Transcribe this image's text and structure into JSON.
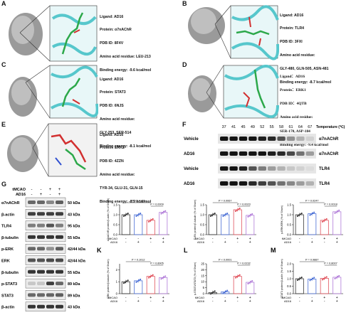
{
  "panels": {
    "A": {
      "letter": "A",
      "ligand": "Ligand: AD16",
      "protein": "Protein: α7nAChR",
      "pdb": "PDB ID: 8F4V",
      "residue_label": "Amino acid residue: LEU-213",
      "residue_values": "",
      "energy": "Binding energy: -9.6 kcal/mol"
    },
    "B": {
      "letter": "B",
      "ligand": "Ligand: AD16",
      "protein": "Protein: TLR4",
      "pdb": "PDB ID: 3FXI",
      "residue_label": "Amino acid residue:",
      "residue_values": "GLY-480, GLN-505, ASN-481",
      "energy": "Binding energy: -8.7 kcal/mol"
    },
    "C": {
      "letter": "C",
      "ligand": "Ligand: AD16",
      "protein": "Protein: STAT3",
      "pdb": "PDB ID: 6NJS",
      "residue_label": "Amino acid residue:",
      "residue_values": "GLY-253, SER-514",
      "energy": "Binding energy: -8.1 kcal/mol"
    },
    "D": {
      "letter": "D",
      "ligand": "Ligand：AD16",
      "protein": "Protein：ERK1",
      "pdb": "PDB ID：4QTB",
      "residue_label": "Amino acid residue:",
      "residue_values": "SER-170, ASP-184",
      "energy": "Binding energy: -9.4 kcal/mol"
    },
    "E": {
      "letter": "E",
      "ligand": "Ligand: AD16",
      "protein": "Protein: ERK2",
      "pdb": "PDB ID: 4ZZN",
      "residue_label": "Amino acid residue:",
      "residue_values": "TYR-34, GLU-31, GLN-15",
      "energy": "Binding energy: -8.9 kcal/mol"
    }
  },
  "panelF": {
    "letter": "F",
    "temperatures": [
      "37",
      "41",
      "45",
      "49",
      "52",
      "55",
      "58",
      "61",
      "64",
      "67"
    ],
    "temp_label": "Temperature (℃)",
    "rows": [
      {
        "group": "Vehicle",
        "protein": "α7nAChR"
      },
      {
        "group": "AD16",
        "protein": "α7nAChR"
      },
      {
        "group": "Vehicle",
        "protein": "TLR4"
      },
      {
        "group": "AD16",
        "protein": "TLR4"
      }
    ]
  },
  "panelG": {
    "letter": "G",
    "tmcao": "tMCAO",
    "ad16": "AD16",
    "tmcao_signs": [
      "-",
      "-",
      "+",
      "+"
    ],
    "ad16_signs": [
      "-",
      "+",
      "-",
      "+"
    ],
    "rows": [
      {
        "name": "α7nAChR",
        "size": "50 kDa"
      },
      {
        "name": "β-actin",
        "size": "43 kDa"
      },
      {
        "name": "TLR4",
        "size": "95 kDa"
      },
      {
        "name": "β-tubulin",
        "size": "55 kDa"
      },
      {
        "name": "p-ERK",
        "size": "42/44 kDa"
      },
      {
        "name": "ERK",
        "size": "42/44 kDa"
      },
      {
        "name": "β-tubulin",
        "size": "55 kDa"
      },
      {
        "name": "p-STAT3",
        "size": "89 kDa"
      },
      {
        "name": "STAT3",
        "size": "89 kDa"
      },
      {
        "name": "β-actin",
        "size": "43 kDa"
      }
    ]
  },
  "chart_data": [
    {
      "letter": "H",
      "type": "bar",
      "ylabel": "α7nAChR protein/β-actin (% of Sham)",
      "ylim": [
        0,
        1.5
      ],
      "yticks": [
        "0.0",
        "0.5",
        "1.0",
        "1.5"
      ],
      "categories": [
        "Sham",
        "AD16",
        "tMCAO",
        "tMCAO+AD16"
      ],
      "values": [
        1.0,
        1.0,
        0.72,
        1.12
      ],
      "colors": [
        "#333333",
        "#4a6fd6",
        "#e0515b",
        "#b07ad8"
      ],
      "pvals": [
        "P = 0.0101",
        "P = 0.0009"
      ],
      "tmcao_signs": [
        "-",
        "-",
        "+",
        "+"
      ],
      "ad16_signs": [
        "-",
        "+",
        "-",
        "+"
      ],
      "row_labels": [
        "tMCAO",
        "AD16"
      ]
    },
    {
      "letter": "I",
      "type": "bar",
      "ylabel": "TLR4 protein/β-tubulin (% of Sham)",
      "ylim": [
        0,
        1.5
      ],
      "yticks": [
        "0.0",
        "0.5",
        "1.0",
        "1.5"
      ],
      "categories": [
        "Sham",
        "AD16",
        "tMCAO",
        "tMCAO+AD16"
      ],
      "values": [
        1.0,
        1.0,
        1.25,
        0.97
      ],
      "colors": [
        "#333333",
        "#4a6fd6",
        "#e0515b",
        "#b07ad8"
      ],
      "pvals": [
        "P = 0.0067",
        "P = 0.0023"
      ],
      "tmcao_signs": [
        "-",
        "-",
        "+",
        "+"
      ],
      "ad16_signs": [
        "-",
        "+",
        "-",
        "+"
      ],
      "row_labels": [
        "tMCAO",
        "AD16"
      ]
    },
    {
      "letter": "J",
      "type": "bar",
      "ylabel": "p-ERK/ERK (% of Sham)",
      "ylim": [
        0,
        1.5
      ],
      "yticks": [
        "0.0",
        "0.5",
        "1.0",
        "1.5"
      ],
      "categories": [
        "Sham",
        "AD16",
        "tMCAO",
        "tMCAO+AD16"
      ],
      "values": [
        1.0,
        1.05,
        0.72,
        1.15
      ],
      "colors": [
        "#333333",
        "#4a6fd6",
        "#e0515b",
        "#b07ad8"
      ],
      "pvals": [
        "P = 0.0247",
        "P = 0.0018"
      ],
      "tmcao_signs": [
        "-",
        "-",
        "+",
        "+"
      ],
      "ad16_signs": [
        "-",
        "+",
        "-",
        "+"
      ],
      "row_labels": [
        "tMCAO",
        "AD16"
      ]
    },
    {
      "letter": "K",
      "type": "bar",
      "ylabel": "ERK protein/β-tubulin (% of Sham)",
      "ylim": [
        0,
        2.5
      ],
      "yticks": [
        "0",
        "1",
        "2"
      ],
      "categories": [
        "Sham",
        "AD16",
        "tMCAO",
        "tMCAO+AD16"
      ],
      "values": [
        1.0,
        1.08,
        1.45,
        1.35
      ],
      "colors": [
        "#333333",
        "#4a6fd6",
        "#e0515b",
        "#b07ad8"
      ],
      "pvals": [
        "P = 0.1012",
        "P = 0.8905"
      ],
      "tmcao_signs": [
        "-",
        "-",
        "+",
        "+"
      ],
      "ad16_signs": [
        "-",
        "+",
        "-",
        "+"
      ],
      "row_labels": [
        "tMCAO",
        "AD16"
      ]
    },
    {
      "letter": "L",
      "type": "bar",
      "ylabel": "p-STAT3/STAT3 (% of Sham)",
      "ylim": [
        0,
        25
      ],
      "yticks": [
        "0",
        "5",
        "10",
        "15",
        "20",
        "25"
      ],
      "categories": [
        "Sham",
        "AD16",
        "tMCAO",
        "tMCAO+AD16"
      ],
      "values": [
        1.0,
        1.5,
        14.5,
        9.5
      ],
      "colors": [
        "#333333",
        "#4a6fd6",
        "#e0515b",
        "#b07ad8"
      ],
      "pvals": [
        "P < 0.0001",
        "P = 0.0232"
      ],
      "tmcao_signs": [
        "-",
        "-",
        "+",
        "+"
      ],
      "ad16_signs": [
        "-",
        "+",
        "-",
        "+"
      ],
      "row_labels": [
        "tMCAO",
        "AD16"
      ]
    },
    {
      "letter": "M",
      "type": "bar",
      "ylabel": "STAT3 protein/β-actin (% of Sham)",
      "ylim": [
        0,
        2.0
      ],
      "yticks": [
        "0.0",
        "0.5",
        "1.0",
        "1.5",
        "2.0"
      ],
      "categories": [
        "Sham",
        "AD16",
        "tMCAO",
        "tMCAO+AD16"
      ],
      "values": [
        1.0,
        0.98,
        1.03,
        1.1
      ],
      "colors": [
        "#333333",
        "#4a6fd6",
        "#e0515b",
        "#b07ad8"
      ],
      "pvals": [
        "P = 0.9887",
        "P = 0.8007"
      ],
      "tmcao_signs": [
        "-",
        "-",
        "+",
        "+"
      ],
      "ad16_signs": [
        "-",
        "+",
        "-",
        "+"
      ],
      "row_labels": [
        "tMCAO",
        "AD16"
      ]
    }
  ]
}
